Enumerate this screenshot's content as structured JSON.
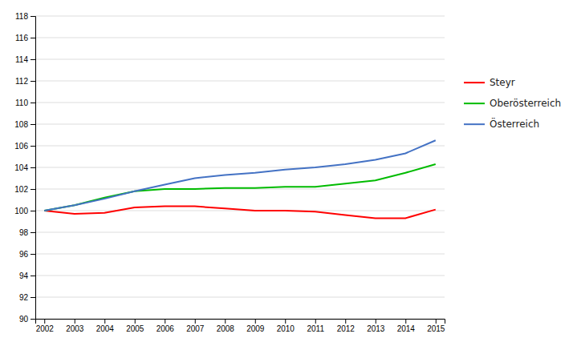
{
  "chart_data": {
    "type": "line",
    "x": [
      2002,
      2003,
      2004,
      2005,
      2006,
      2007,
      2008,
      2009,
      2010,
      2011,
      2012,
      2013,
      2014,
      2015
    ],
    "series": [
      {
        "name": "Steyr",
        "color": "#ff0000",
        "values": [
          100.0,
          99.7,
          99.8,
          100.3,
          100.4,
          100.4,
          100.2,
          100.0,
          100.0,
          99.9,
          99.6,
          99.3,
          99.3,
          100.1
        ]
      },
      {
        "name": "Oberösterreich",
        "color": "#00bb00",
        "values": [
          100.0,
          100.5,
          101.2,
          101.8,
          102.0,
          102.0,
          102.1,
          102.1,
          102.2,
          102.2,
          102.5,
          102.8,
          103.5,
          104.3
        ]
      },
      {
        "name": "Österreich",
        "color": "#4472c4",
        "values": [
          100.0,
          100.5,
          101.1,
          101.8,
          102.4,
          103.0,
          103.3,
          103.5,
          103.8,
          104.0,
          104.3,
          104.7,
          105.3,
          106.5
        ]
      }
    ],
    "xlim": [
      2001.7,
      2015.3
    ],
    "xticks": [
      2002,
      2003,
      2004,
      2005,
      2006,
      2007,
      2008,
      2009,
      2010,
      2011,
      2012,
      2013,
      2014,
      2015
    ],
    "ylim": [
      90,
      118
    ],
    "yticks": [
      90,
      92,
      94,
      96,
      98,
      100,
      102,
      104,
      106,
      108,
      110,
      112,
      114,
      116,
      118
    ],
    "grid": "y",
    "legend": "right"
  }
}
